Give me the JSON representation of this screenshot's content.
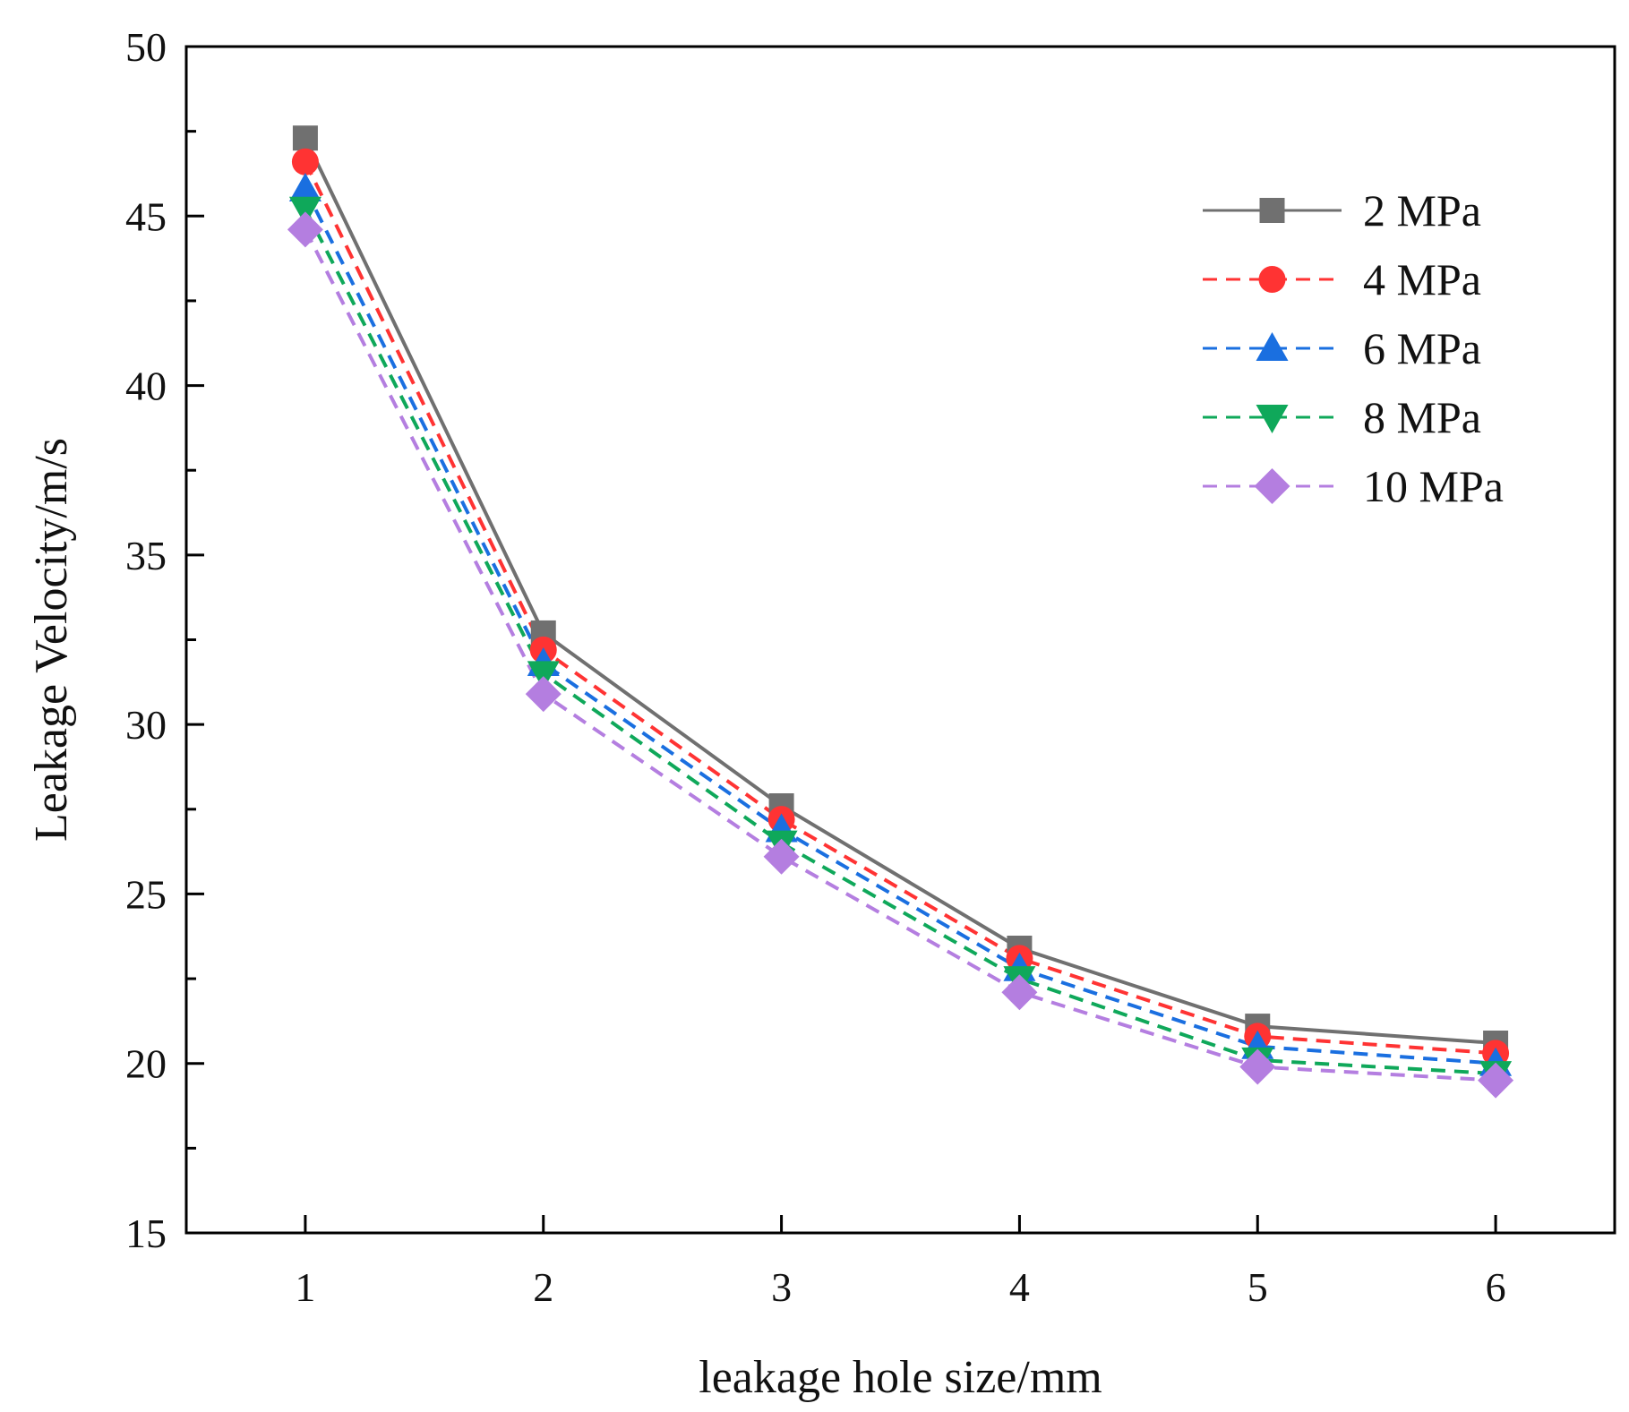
{
  "chart_data": {
    "type": "line",
    "title": "",
    "xlabel": "leakage hole size/mm",
    "ylabel": "Leakage Velocity/m/s",
    "xlim": [
      0.5,
      6.5
    ],
    "ylim": [
      15,
      50
    ],
    "xticks": [
      1,
      2,
      3,
      4,
      5,
      6
    ],
    "yticks": [
      15,
      20,
      25,
      30,
      35,
      40,
      45,
      50
    ],
    "legend_position": "top-right",
    "grid": false,
    "x": [
      1,
      2,
      3,
      4,
      5,
      6
    ],
    "series": [
      {
        "name": "2 MPa",
        "values": [
          47.3,
          32.7,
          27.6,
          23.4,
          21.1,
          20.6
        ],
        "color": "#707070",
        "marker": "square",
        "line": "solid"
      },
      {
        "name": "4 MPa",
        "values": [
          46.6,
          32.2,
          27.2,
          23.1,
          20.8,
          20.3
        ],
        "color": "#ff3333",
        "marker": "circle",
        "line": "dashed"
      },
      {
        "name": "6 MPa",
        "values": [
          45.8,
          31.8,
          26.9,
          22.8,
          20.5,
          20.0
        ],
        "color": "#1a6fe0",
        "marker": "triangle-up",
        "line": "dashed"
      },
      {
        "name": "8 MPa",
        "values": [
          45.2,
          31.5,
          26.5,
          22.5,
          20.1,
          19.7
        ],
        "color": "#0fa85a",
        "marker": "triangle-down",
        "line": "dashed"
      },
      {
        "name": "10 MPa",
        "values": [
          44.6,
          30.9,
          26.1,
          22.1,
          19.9,
          19.5
        ],
        "color": "#b47ee0",
        "marker": "diamond",
        "line": "dashed"
      }
    ]
  }
}
